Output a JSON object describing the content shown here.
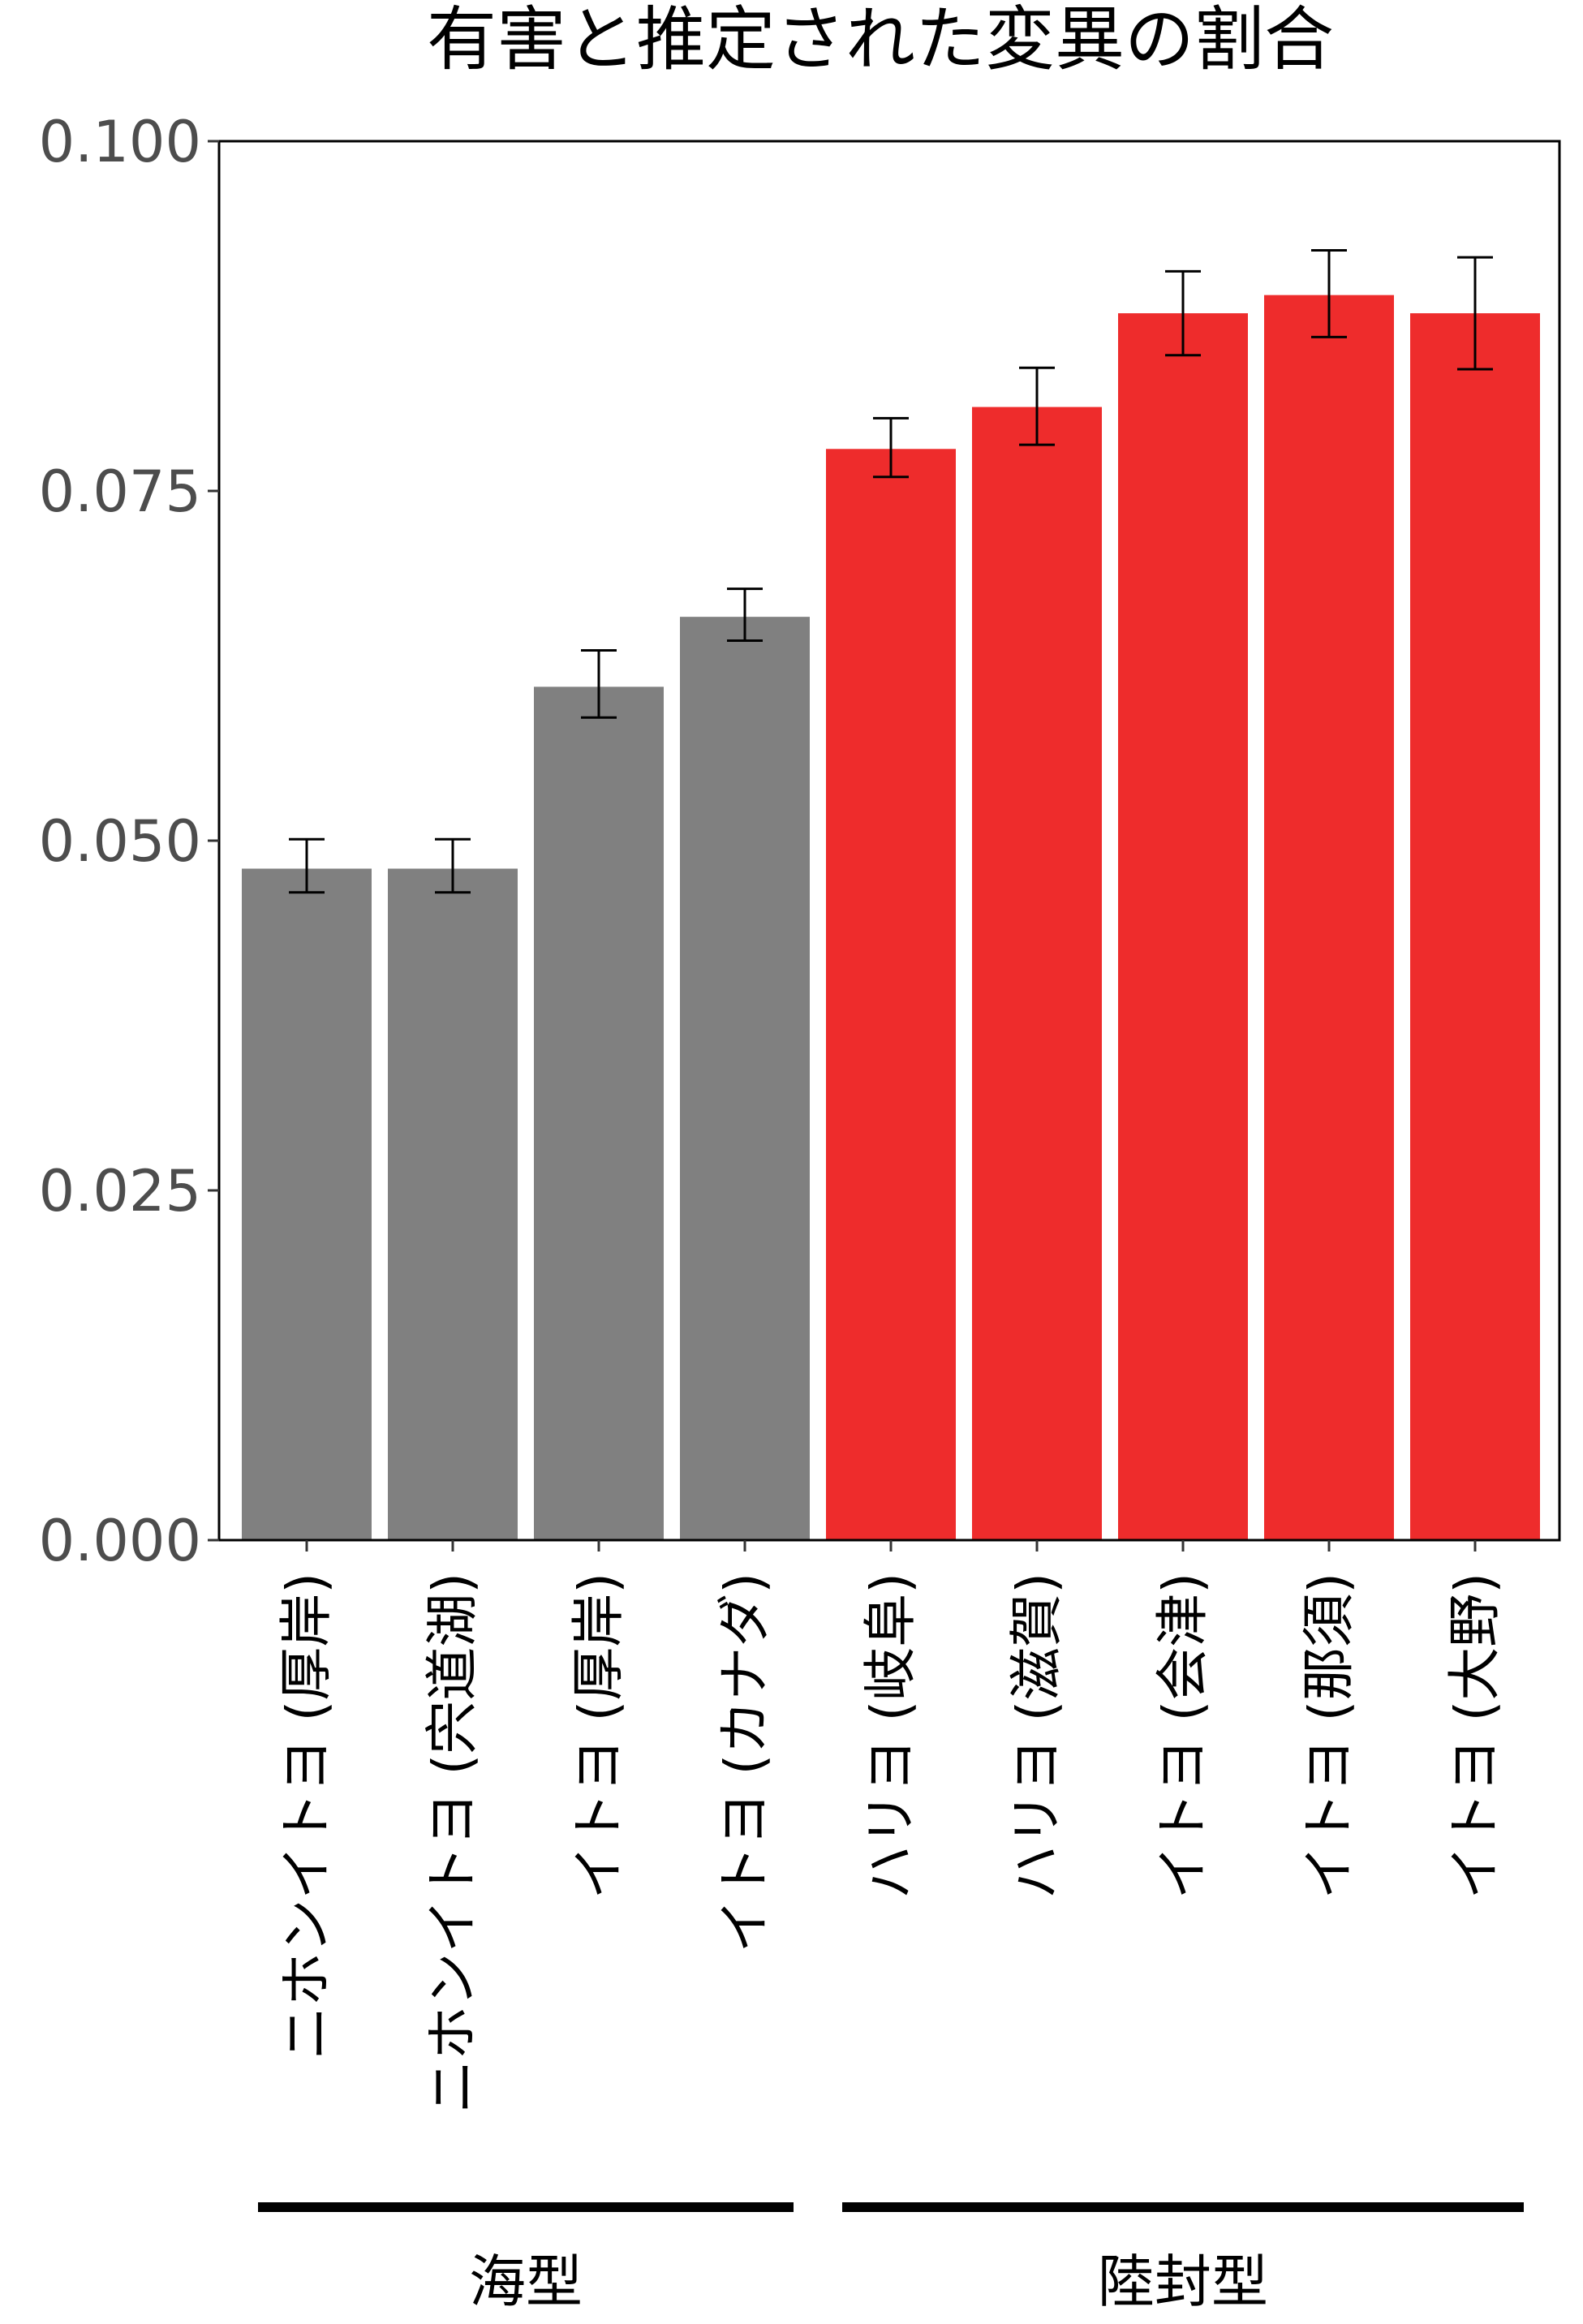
{
  "chart_data": {
    "type": "bar",
    "title": "有害と推定された変異の割合",
    "xlabel": "",
    "ylabel": "",
    "ylim": [
      0,
      0.1
    ],
    "y_ticks": [
      "0.000",
      "0.025",
      "0.050",
      "0.075",
      "0.100"
    ],
    "y_tick_values": [
      0,
      0.025,
      0.05,
      0.075,
      0.1
    ],
    "grid": false,
    "legend": "none",
    "categories": [
      "ニホンイトヨ (厚岸)",
      "ニホンイトヨ (宍道湖)",
      "イトヨ (厚岸)",
      "イトヨ (カナダ)",
      "ハリヨ (岐阜)",
      "ハリヨ (滋賀)",
      "イトヨ (会津)",
      "イトヨ (那須)",
      "イトヨ (大野)"
    ],
    "values": [
      0.048,
      0.048,
      0.061,
      0.066,
      0.078,
      0.081,
      0.0877,
      0.089,
      0.0877
    ],
    "error_low": [
      0.0463,
      0.0463,
      0.0588,
      0.0643,
      0.076,
      0.0783,
      0.0847,
      0.086,
      0.0837
    ],
    "error_high": [
      0.0501,
      0.0501,
      0.0636,
      0.068,
      0.0802,
      0.0838,
      0.0907,
      0.0922,
      0.0917
    ],
    "groups": [
      {
        "name": "海型",
        "start": 0,
        "end": 3,
        "color": "#808080"
      },
      {
        "name": "陸封型",
        "start": 4,
        "end": 8,
        "color": "#ee2c2c"
      }
    ]
  }
}
